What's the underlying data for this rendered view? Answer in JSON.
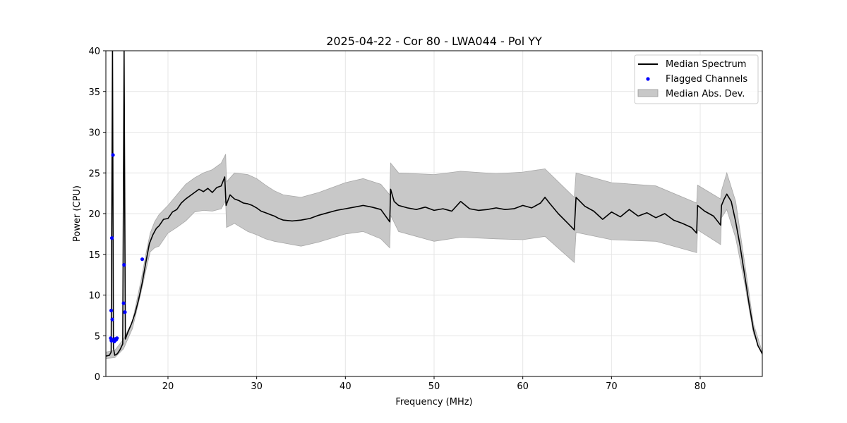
{
  "chart_data": {
    "type": "line",
    "title": "2025-04-22 - Cor 80 - LWA044 - Pol YY",
    "xlabel": "Frequency (MHz)",
    "ylabel": "Power (CPU)",
    "xlim": [
      13.0,
      87.0
    ],
    "ylim": [
      0,
      40
    ],
    "xticks": [
      20,
      30,
      40,
      50,
      60,
      70,
      80
    ],
    "yticks": [
      0,
      5,
      10,
      15,
      20,
      25,
      30,
      35,
      40
    ],
    "grid": true,
    "legend_position": "top-right",
    "legend": [
      {
        "label": "Median Spectrum",
        "kind": "line",
        "color": "#000000"
      },
      {
        "label": "Flagged Channels",
        "kind": "point",
        "color": "#0000ff"
      },
      {
        "label": "Median Abs. Dev.",
        "kind": "band",
        "color": "#c8c8c8"
      }
    ],
    "series": [
      {
        "name": "Median Spectrum",
        "color": "#000000",
        "points": [
          [
            13.0,
            2.5
          ],
          [
            13.4,
            2.6
          ],
          [
            13.6,
            3.0
          ],
          [
            13.75,
            40
          ],
          [
            13.85,
            3.5
          ],
          [
            14.0,
            2.6
          ],
          [
            14.3,
            2.8
          ],
          [
            14.6,
            3.3
          ],
          [
            14.9,
            4.0
          ],
          [
            15.05,
            40
          ],
          [
            15.2,
            4.6
          ],
          [
            15.5,
            5.5
          ],
          [
            15.9,
            6.5
          ],
          [
            16.3,
            7.8
          ],
          [
            16.7,
            9.5
          ],
          [
            17.1,
            11.5
          ],
          [
            17.5,
            14.0
          ],
          [
            17.9,
            16.3
          ],
          [
            18.3,
            17.4
          ],
          [
            18.7,
            18.2
          ],
          [
            19.0,
            18.5
          ],
          [
            19.5,
            19.3
          ],
          [
            20.0,
            19.4
          ],
          [
            20.5,
            20.2
          ],
          [
            21.0,
            20.5
          ],
          [
            21.5,
            21.3
          ],
          [
            22.0,
            21.8
          ],
          [
            22.5,
            22.2
          ],
          [
            23.0,
            22.6
          ],
          [
            23.5,
            23.0
          ],
          [
            24.0,
            22.7
          ],
          [
            24.5,
            23.1
          ],
          [
            25.0,
            22.6
          ],
          [
            25.5,
            23.2
          ],
          [
            26.0,
            23.4
          ],
          [
            26.4,
            24.5
          ],
          [
            26.55,
            21.0
          ],
          [
            27.0,
            22.3
          ],
          [
            27.5,
            21.8
          ],
          [
            28.0,
            21.6
          ],
          [
            28.5,
            21.3
          ],
          [
            29.0,
            21.2
          ],
          [
            29.5,
            21.0
          ],
          [
            30.0,
            20.7
          ],
          [
            30.5,
            20.3
          ],
          [
            31.0,
            20.1
          ],
          [
            31.5,
            19.9
          ],
          [
            32.0,
            19.7
          ],
          [
            32.5,
            19.4
          ],
          [
            33.0,
            19.2
          ],
          [
            34.0,
            19.1
          ],
          [
            35.0,
            19.2
          ],
          [
            36.0,
            19.4
          ],
          [
            37.0,
            19.8
          ],
          [
            38.0,
            20.1
          ],
          [
            39.0,
            20.4
          ],
          [
            40.0,
            20.6
          ],
          [
            41.0,
            20.8
          ],
          [
            42.0,
            21.0
          ],
          [
            43.0,
            20.8
          ],
          [
            44.0,
            20.5
          ],
          [
            45.0,
            19.0
          ],
          [
            45.1,
            23.0
          ],
          [
            45.5,
            21.5
          ],
          [
            46.0,
            21.0
          ],
          [
            47.0,
            20.7
          ],
          [
            48.0,
            20.5
          ],
          [
            49.0,
            20.8
          ],
          [
            50.0,
            20.4
          ],
          [
            51.0,
            20.6
          ],
          [
            52.0,
            20.3
          ],
          [
            53.0,
            21.5
          ],
          [
            54.0,
            20.6
          ],
          [
            55.0,
            20.4
          ],
          [
            56.0,
            20.5
          ],
          [
            57.0,
            20.7
          ],
          [
            58.0,
            20.5
          ],
          [
            59.0,
            20.6
          ],
          [
            60.0,
            21.0
          ],
          [
            61.0,
            20.7
          ],
          [
            62.0,
            21.3
          ],
          [
            62.5,
            22.0
          ],
          [
            63.0,
            21.3
          ],
          [
            64.0,
            20.0
          ],
          [
            65.0,
            18.9
          ],
          [
            65.8,
            18.0
          ],
          [
            66.0,
            22.0
          ],
          [
            67.0,
            20.9
          ],
          [
            68.0,
            20.3
          ],
          [
            69.0,
            19.3
          ],
          [
            70.0,
            20.2
          ],
          [
            71.0,
            19.6
          ],
          [
            72.0,
            20.5
          ],
          [
            73.0,
            19.7
          ],
          [
            74.0,
            20.1
          ],
          [
            75.0,
            19.5
          ],
          [
            76.0,
            20.0
          ],
          [
            77.0,
            19.2
          ],
          [
            78.0,
            18.8
          ],
          [
            79.0,
            18.3
          ],
          [
            79.6,
            17.6
          ],
          [
            79.7,
            21.0
          ],
          [
            80.5,
            20.3
          ],
          [
            81.5,
            19.7
          ],
          [
            82.3,
            18.6
          ],
          [
            82.4,
            21.0
          ],
          [
            82.7,
            21.8
          ],
          [
            83.0,
            22.4
          ],
          [
            83.5,
            21.5
          ],
          [
            84.0,
            19.0
          ],
          [
            84.5,
            16.0
          ],
          [
            85.0,
            12.5
          ],
          [
            85.5,
            9.0
          ],
          [
            86.0,
            5.8
          ],
          [
            86.5,
            3.8
          ],
          [
            87.0,
            2.8
          ]
        ]
      }
    ],
    "band": {
      "name": "Median Abs. Dev.",
      "color": "#c8c8c8",
      "upper": [
        [
          13.0,
          3.0
        ],
        [
          14.0,
          3.2
        ],
        [
          15.0,
          4.6
        ],
        [
          16.0,
          6.8
        ],
        [
          17.0,
          12.0
        ],
        [
          17.5,
          15.0
        ],
        [
          18.0,
          17.6
        ],
        [
          18.5,
          19.0
        ],
        [
          19.0,
          19.9
        ],
        [
          20.0,
          21.0
        ],
        [
          21.0,
          22.3
        ],
        [
          22.0,
          23.6
        ],
        [
          23.0,
          24.4
        ],
        [
          24.0,
          25.0
        ],
        [
          25.0,
          25.4
        ],
        [
          26.0,
          26.2
        ],
        [
          26.5,
          27.3
        ],
        [
          26.6,
          23.9
        ],
        [
          27.5,
          25.0
        ],
        [
          29.0,
          24.8
        ],
        [
          30.0,
          24.3
        ],
        [
          31.0,
          23.5
        ],
        [
          32.0,
          22.8
        ],
        [
          33.0,
          22.3
        ],
        [
          35.0,
          22.0
        ],
        [
          37.0,
          22.6
        ],
        [
          40.0,
          23.8
        ],
        [
          42.0,
          24.3
        ],
        [
          44.0,
          23.6
        ],
        [
          45.0,
          22.3
        ],
        [
          45.1,
          26.2
        ],
        [
          46.0,
          25.0
        ],
        [
          50.0,
          24.8
        ],
        [
          53.0,
          25.2
        ],
        [
          57.0,
          24.9
        ],
        [
          60.0,
          25.1
        ],
        [
          62.5,
          25.5
        ],
        [
          65.8,
          22.0
        ],
        [
          66.0,
          25.0
        ],
        [
          70.0,
          23.8
        ],
        [
          75.0,
          23.4
        ],
        [
          79.6,
          21.3
        ],
        [
          79.7,
          23.5
        ],
        [
          82.3,
          21.8
        ],
        [
          82.4,
          22.8
        ],
        [
          83.0,
          25.0
        ],
        [
          84.0,
          21.5
        ],
        [
          85.0,
          14.0
        ],
        [
          86.0,
          6.5
        ],
        [
          87.0,
          3.0
        ]
      ],
      "lower": [
        [
          13.0,
          2.2
        ],
        [
          14.0,
          2.3
        ],
        [
          15.0,
          3.4
        ],
        [
          16.0,
          5.9
        ],
        [
          17.0,
          10.5
        ],
        [
          17.5,
          13.0
        ],
        [
          18.0,
          15.3
        ],
        [
          18.5,
          15.8
        ],
        [
          19.0,
          16.0
        ],
        [
          20.0,
          17.6
        ],
        [
          21.0,
          18.3
        ],
        [
          22.0,
          19.1
        ],
        [
          23.0,
          20.2
        ],
        [
          24.0,
          20.4
        ],
        [
          25.0,
          20.3
        ],
        [
          26.0,
          20.6
        ],
        [
          26.5,
          21.6
        ],
        [
          26.6,
          18.3
        ],
        [
          27.5,
          18.8
        ],
        [
          29.0,
          17.8
        ],
        [
          30.0,
          17.4
        ],
        [
          31.0,
          16.9
        ],
        [
          32.0,
          16.6
        ],
        [
          33.0,
          16.4
        ],
        [
          35.0,
          16.0
        ],
        [
          37.0,
          16.5
        ],
        [
          40.0,
          17.5
        ],
        [
          42.0,
          17.8
        ],
        [
          44.0,
          16.9
        ],
        [
          45.0,
          15.8
        ],
        [
          45.1,
          19.8
        ],
        [
          46.0,
          17.8
        ],
        [
          50.0,
          16.6
        ],
        [
          53.0,
          17.1
        ],
        [
          57.0,
          16.9
        ],
        [
          60.0,
          16.8
        ],
        [
          62.5,
          17.2
        ],
        [
          65.8,
          14.0
        ],
        [
          66.0,
          17.7
        ],
        [
          70.0,
          16.8
        ],
        [
          75.0,
          16.6
        ],
        [
          79.6,
          15.2
        ],
        [
          79.7,
          18.0
        ],
        [
          82.3,
          16.2
        ],
        [
          82.4,
          19.5
        ],
        [
          83.0,
          20.5
        ],
        [
          84.0,
          17.0
        ],
        [
          85.0,
          11.5
        ],
        [
          86.0,
          5.3
        ],
        [
          87.0,
          2.6
        ]
      ]
    },
    "flagged": {
      "name": "Flagged Channels",
      "color": "#0000ff",
      "x": [
        13.55,
        13.6,
        13.62,
        13.68,
        13.72,
        13.8,
        13.85,
        13.95,
        14.05,
        14.15,
        14.25,
        15.0,
        15.05,
        15.15,
        17.1
      ],
      "y": [
        4.7,
        8.1,
        4.4,
        17.0,
        7.0,
        27.2,
        4.5,
        4.3,
        4.6,
        4.5,
        4.7,
        9.0,
        13.7,
        7.9,
        14.4
      ]
    }
  }
}
